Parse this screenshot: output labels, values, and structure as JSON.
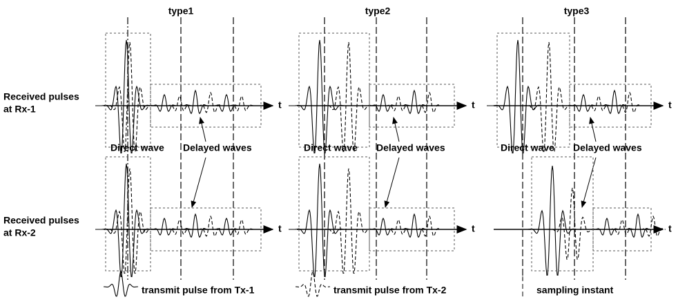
{
  "columns": [
    {
      "title": "type1",
      "rows": [
        {
          "axis": "t",
          "direct": "Direct wave",
          "delayed": "Delayed waves"
        },
        {
          "axis": "t"
        }
      ]
    },
    {
      "title": "type2",
      "rows": [
        {
          "axis": "t",
          "direct": "Direct wave",
          "delayed": "Delayed waves"
        },
        {
          "axis": "t"
        }
      ]
    },
    {
      "title": "type3",
      "rows": [
        {
          "axis": "t",
          "direct": "Direct wave",
          "delayed": "Delayed waves"
        },
        {
          "axis": "t"
        }
      ]
    }
  ],
  "rows": [
    {
      "label": [
        "Received pulses",
        "at Rx-1"
      ]
    },
    {
      "label": [
        "Received pulses",
        "at Rx-2"
      ]
    }
  ],
  "legend": [
    {
      "label": "transmit pulse from Tx-1"
    },
    {
      "label": "transmit pulse from Tx-2"
    },
    {
      "label": "sampling instant"
    }
  ]
}
